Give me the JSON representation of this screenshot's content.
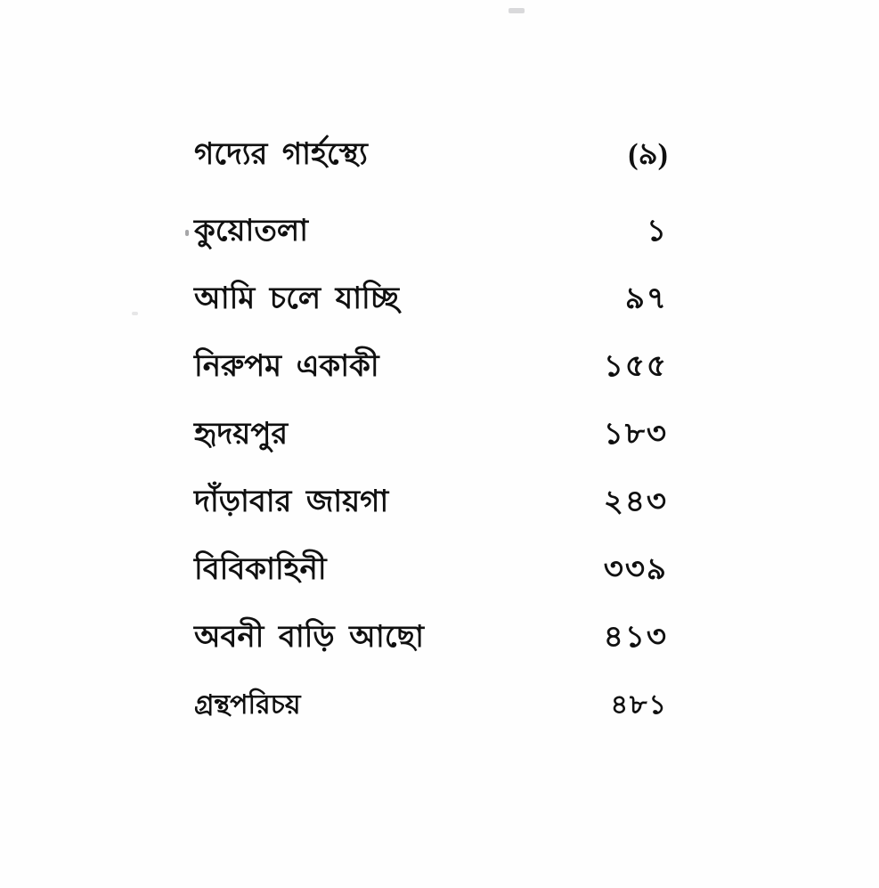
{
  "page": {
    "background": "#fefefe",
    "text_color": "#101010",
    "kind": "scanned book table of contents (Bengali)"
  },
  "header": {
    "title": "গদ্যের গার্হস্থ্যে",
    "page_number": "(৯)"
  },
  "toc": {
    "entries": [
      {
        "title": "কুয়োতলা",
        "page": "১"
      },
      {
        "title": "আমি চলে যাচ্ছি",
        "page": "৯৭"
      },
      {
        "title": "নিরুপম একাকী",
        "page": "১৫৫"
      },
      {
        "title": "হৃদয়পুর",
        "page": "১৮৩"
      },
      {
        "title": "দাঁড়াবার জায়গা",
        "page": "২৪৩"
      },
      {
        "title": "বিবিকাহিনী",
        "page": "৩৩৯"
      },
      {
        "title": "অবনী বাড়ি আছো",
        "page": "৪১৩"
      },
      {
        "title": "গ্রন্থপরিচয়",
        "page": "৪৮১"
      }
    ]
  }
}
